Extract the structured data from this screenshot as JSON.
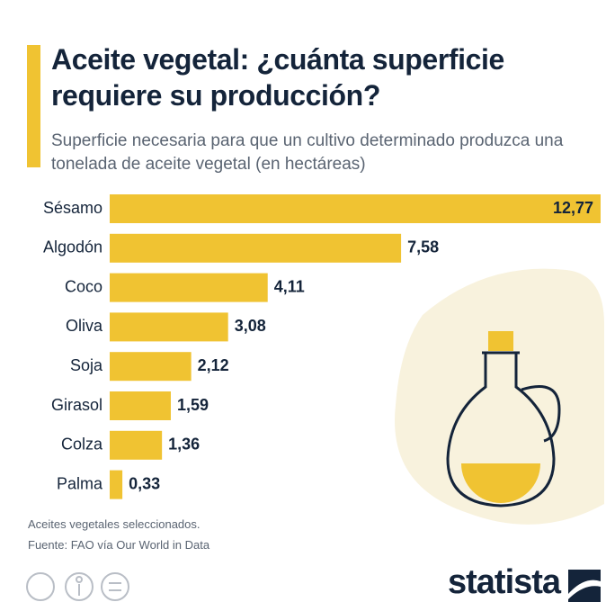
{
  "chart_data": {
    "type": "bar",
    "orientation": "horizontal",
    "title": "Aceite vegetal: ¿cuánta superficie requiere su producción?",
    "subtitle": "Superficie necesaria para que un cultivo determinado produzca una tonelada de aceite vegetal (en hectáreas)",
    "categories": [
      "Sésamo",
      "Algodón",
      "Coco",
      "Oliva",
      "Soja",
      "Girasol",
      "Colza",
      "Palma"
    ],
    "values": [
      12.77,
      7.58,
      4.11,
      3.08,
      2.12,
      1.59,
      1.36,
      0.33
    ],
    "value_labels": [
      "12,77",
      "7,58",
      "4,11",
      "3,08",
      "2,12",
      "1,59",
      "1,36",
      "0,33"
    ],
    "color": "#f0c332",
    "notes": [
      "Aceites vegetales seleccionados.",
      "Fuente: FAO vía Our World in Data"
    ],
    "brand": "statista"
  }
}
